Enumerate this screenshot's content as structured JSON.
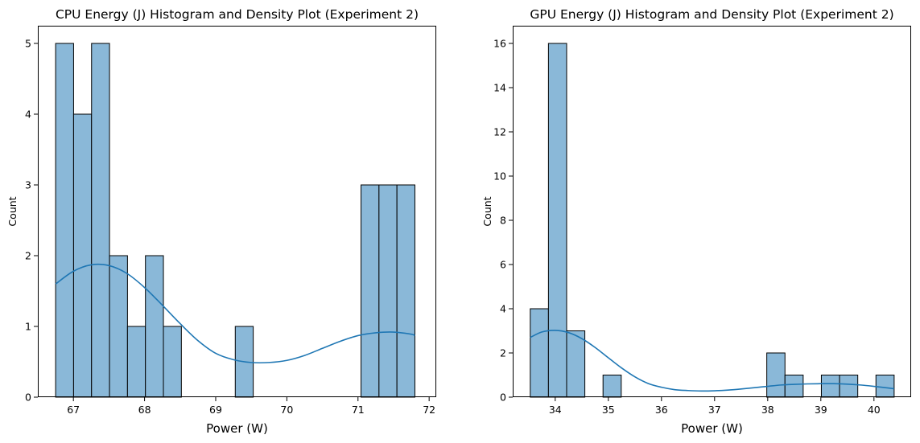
{
  "chart_data": [
    {
      "type": "histogram",
      "title": "CPU Energy (J) Histogram and Density Plot (Experiment 2)",
      "xlabel": "Power (W)",
      "ylabel": "Count",
      "xlim": [
        66.5,
        72.1
      ],
      "ylim": [
        0,
        5.25
      ],
      "xticks": [
        67,
        68,
        69,
        70,
        71,
        72
      ],
      "yticks": [
        0,
        1,
        2,
        3,
        4,
        5
      ],
      "bin_start": 66.75,
      "bin_width": 0.2525,
      "counts": [
        5,
        4,
        5,
        2,
        1,
        2,
        1,
        0,
        0,
        0,
        1,
        0,
        0,
        0,
        0,
        0,
        0,
        3,
        3,
        3
      ],
      "bar_color": "#8ab8d8",
      "edge_color": "#000000",
      "kde_color": "#1f77b4",
      "kde": {
        "x": [
          66.75,
          67.0,
          67.25,
          67.5,
          67.75,
          68.0,
          68.25,
          68.5,
          68.75,
          69.0,
          69.25,
          69.5,
          69.75,
          70.0,
          70.25,
          70.5,
          70.75,
          71.0,
          71.25,
          71.5,
          71.75,
          71.8
        ],
        "y": [
          1.6,
          1.78,
          1.87,
          1.86,
          1.75,
          1.55,
          1.3,
          1.04,
          0.8,
          0.62,
          0.53,
          0.49,
          0.49,
          0.52,
          0.59,
          0.69,
          0.79,
          0.87,
          0.91,
          0.92,
          0.89,
          0.87
        ]
      },
      "grid": false
    },
    {
      "type": "histogram",
      "title": "GPU Energy (J) Histogram and Density Plot (Experiment 2)",
      "xlabel": "Power (W)",
      "ylabel": "Count",
      "xlim": [
        33.2,
        40.7
      ],
      "ylim": [
        0,
        16.8
      ],
      "xticks": [
        34,
        35,
        36,
        37,
        38,
        39,
        40
      ],
      "yticks": [
        0,
        2,
        4,
        6,
        8,
        10,
        12,
        14,
        16
      ],
      "bin_start": 33.53,
      "bin_width": 0.3425,
      "counts": [
        4,
        16,
        3,
        0,
        1,
        0,
        0,
        0,
        0,
        0,
        0,
        0,
        0,
        2,
        1,
        0,
        1,
        1,
        0,
        1
      ],
      "bar_color": "#8ab8d8",
      "edge_color": "#000000",
      "kde_color": "#1f77b4",
      "kde": {
        "x": [
          33.53,
          33.75,
          34.0,
          34.25,
          34.5,
          34.75,
          35.0,
          35.25,
          35.5,
          35.75,
          36.0,
          36.25,
          36.5,
          36.75,
          37.0,
          37.25,
          37.5,
          37.75,
          38.0,
          38.25,
          38.5,
          38.75,
          39.0,
          39.25,
          39.5,
          39.75,
          40.0,
          40.25,
          40.38
        ],
        "y": [
          2.7,
          2.95,
          3.02,
          2.92,
          2.65,
          2.25,
          1.78,
          1.32,
          0.92,
          0.62,
          0.45,
          0.34,
          0.3,
          0.28,
          0.29,
          0.32,
          0.37,
          0.43,
          0.49,
          0.55,
          0.58,
          0.6,
          0.61,
          0.61,
          0.59,
          0.55,
          0.49,
          0.42,
          0.38
        ]
      },
      "grid": false
    }
  ]
}
